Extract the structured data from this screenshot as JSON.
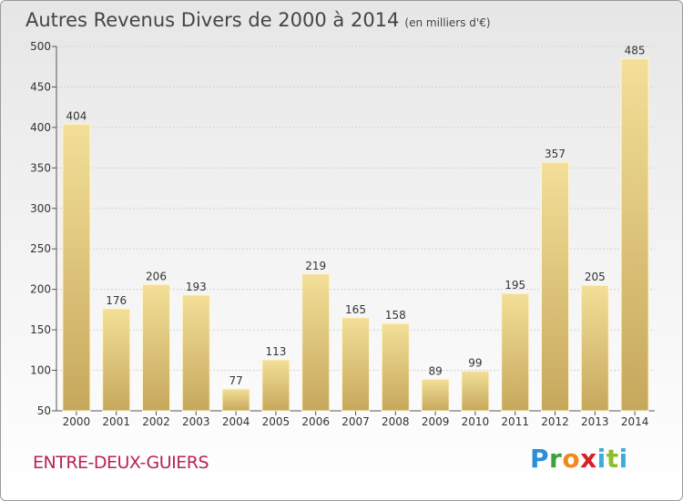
{
  "header": {
    "title": "Autres Revenus Divers de 2000 à 2014",
    "unit": "(en milliers d'€)"
  },
  "footer": {
    "location": "ENTRE-DEUX-GUIERS",
    "logo": "Proxiti"
  },
  "colors": {
    "bar_light": "#f2dc94",
    "bar_dark": "#c7a95c",
    "location_text": "#b8235a"
  },
  "chart_data": {
    "type": "bar",
    "title": "Autres Revenus Divers de 2000 à 2014",
    "subtitle": "(en milliers d'€)",
    "categories": [
      "2000",
      "2001",
      "2002",
      "2003",
      "2004",
      "2005",
      "2006",
      "2007",
      "2008",
      "2009",
      "2010",
      "2011",
      "2012",
      "2013",
      "2014"
    ],
    "values": [
      404,
      176,
      206,
      193,
      77,
      113,
      219,
      165,
      158,
      89,
      99,
      195,
      357,
      205,
      485
    ],
    "ylim": [
      50,
      500
    ],
    "yticks": [
      50,
      100,
      150,
      200,
      250,
      300,
      350,
      400,
      450,
      500
    ],
    "grid": true,
    "data_labels": true
  }
}
